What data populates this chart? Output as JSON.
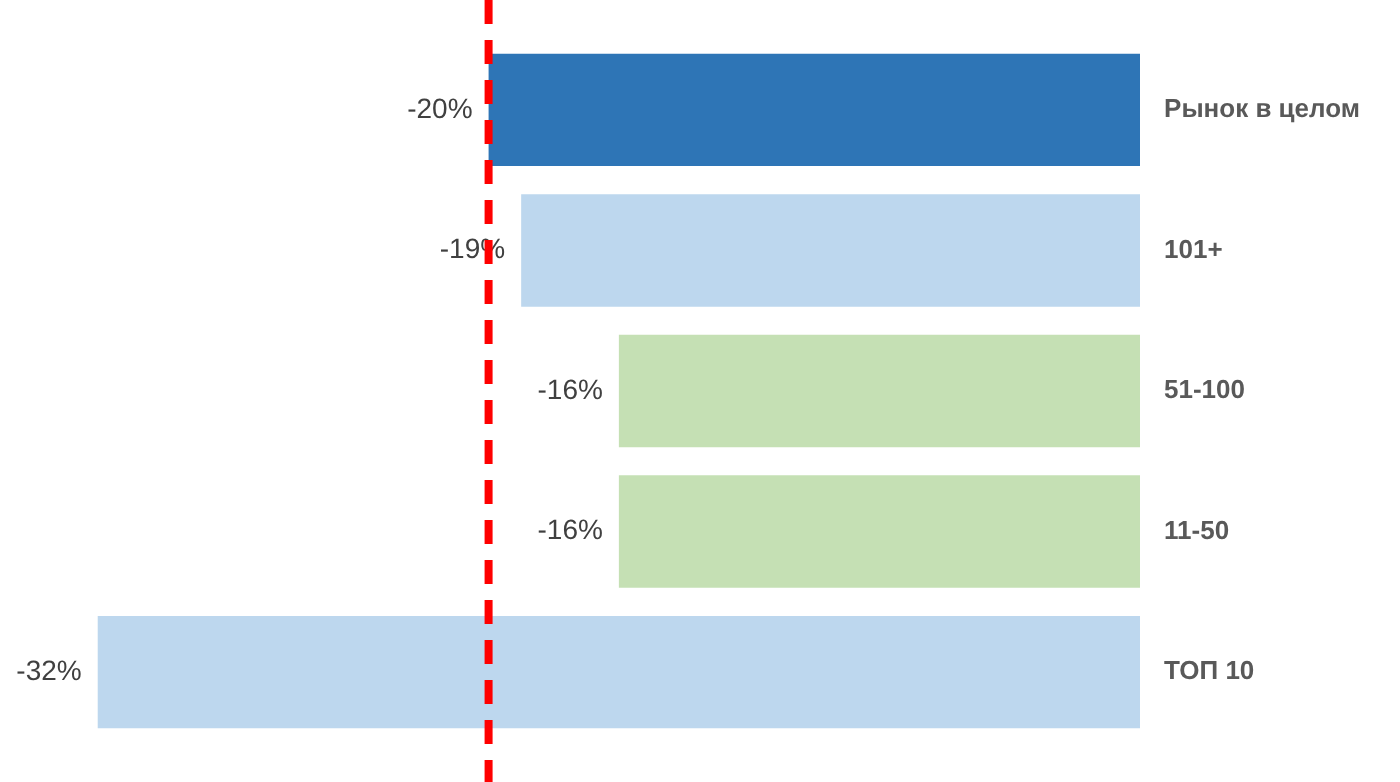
{
  "chart_data": {
    "type": "bar",
    "orientation": "horizontal",
    "categories": [
      "Рынок в целом",
      "101+",
      "51-100",
      "11-50",
      "ТОП 10"
    ],
    "values": [
      -20,
      -19,
      -16,
      -16,
      -32
    ],
    "colors": [
      "#2e75b6",
      "#bdd7ee",
      "#c5e0b4",
      "#c5e0b4",
      "#bdd7ee"
    ],
    "value_labels": [
      "-20%",
      "-19%",
      "-16%",
      "-16%",
      "-32%"
    ],
    "tick_labels": "y",
    "ref_lines": [
      {
        "axis": "x",
        "value": -20,
        "color": "#ff0000",
        "line_style": "dashed"
      }
    ]
  }
}
